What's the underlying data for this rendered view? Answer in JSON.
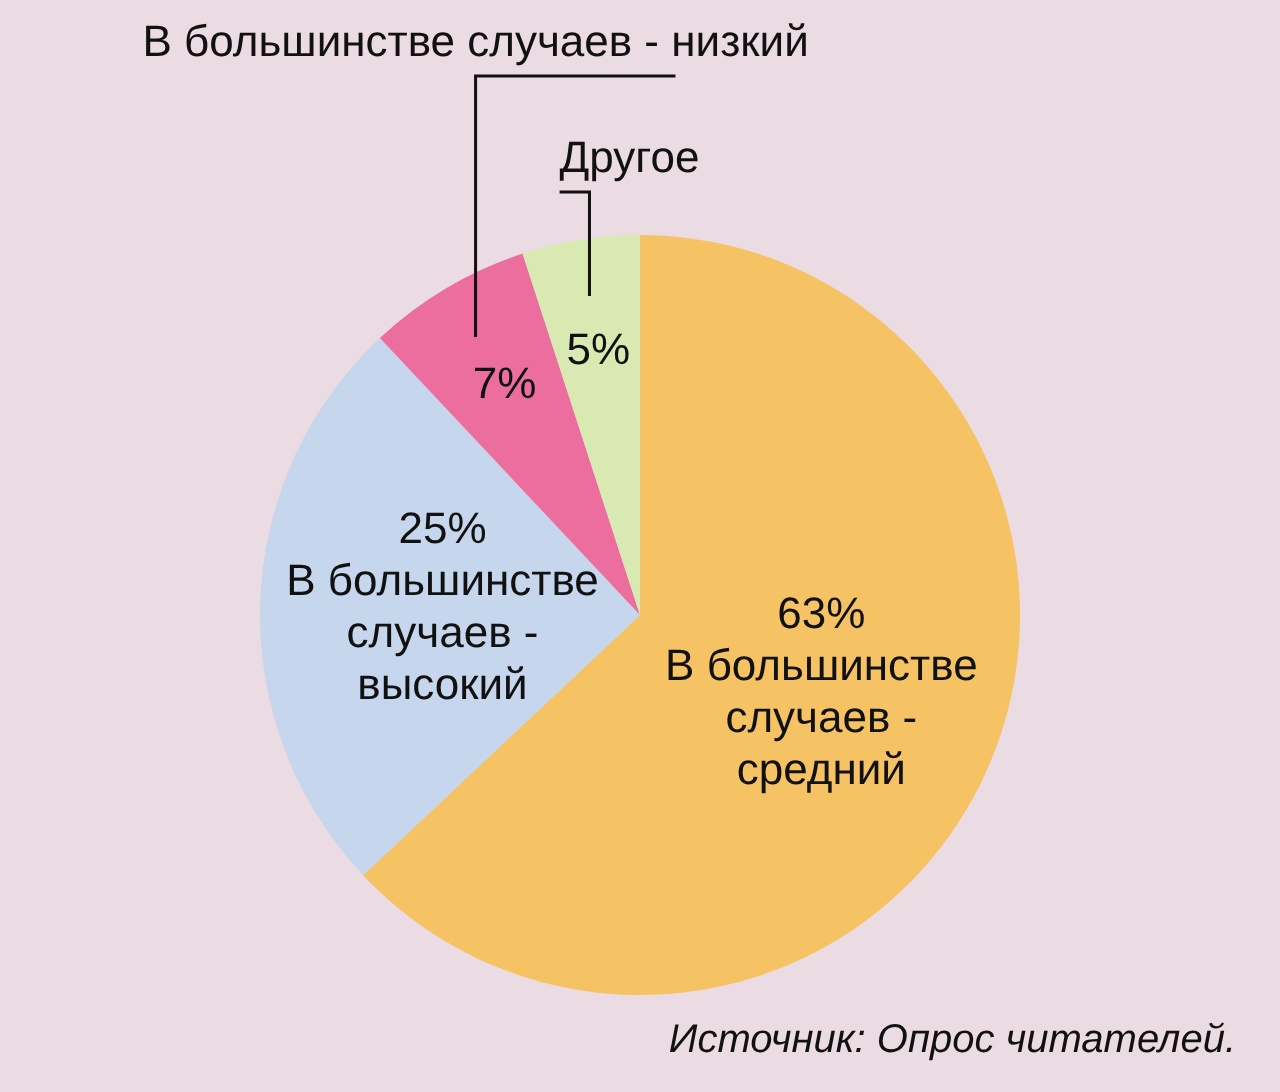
{
  "chart_data": {
    "type": "pie",
    "categories": [
      "В большинстве случаев - средний",
      "В большинстве случаев - высокий",
      "В большинстве случаев - низкий",
      "Другое"
    ],
    "values": [
      63,
      25,
      7,
      5
    ],
    "value_labels": [
      "63%",
      "25%",
      "7%",
      "5%"
    ],
    "colors": [
      "#f5c264",
      "#c6d6ec",
      "#ec6e9e",
      "#d9e9b2"
    ],
    "annotations": [
      "Источник: Опрос читателей."
    ]
  }
}
